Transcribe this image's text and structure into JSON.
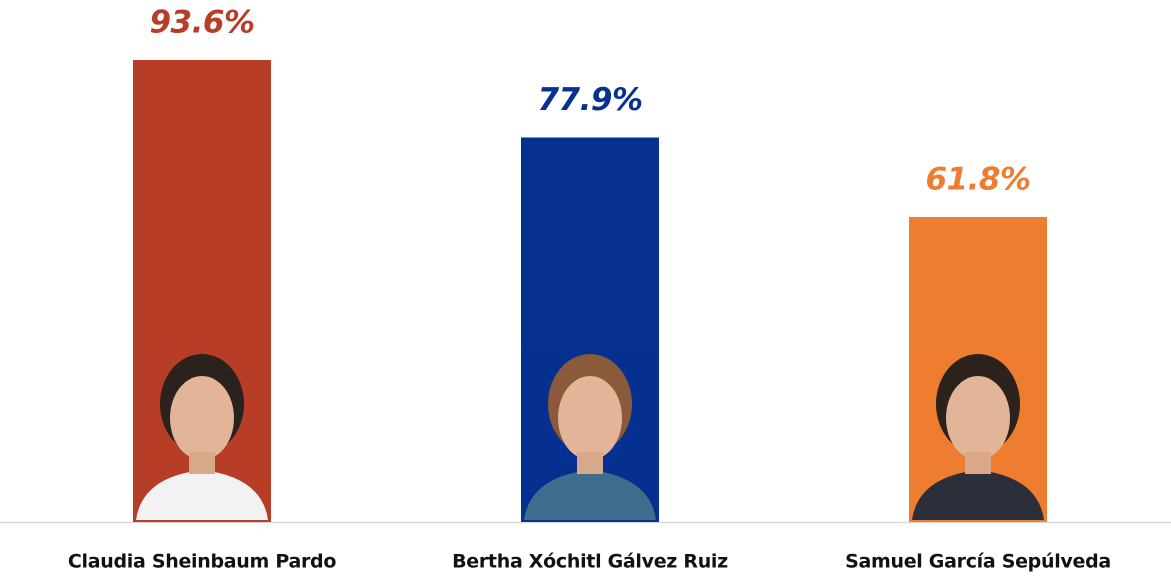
{
  "chart_data": {
    "type": "bar",
    "categories": [
      "Claudia Sheinbaum Pardo",
      "Bertha Xóchitl Gálvez Ruiz",
      "Samuel García Sepúlveda"
    ],
    "values": [
      93.6,
      77.9,
      61.8
    ],
    "value_labels": [
      "93.6%",
      "77.9%",
      "61.8%"
    ],
    "colors": [
      "#b83d27",
      "#06318f",
      "#ed7d31"
    ]
  }
}
